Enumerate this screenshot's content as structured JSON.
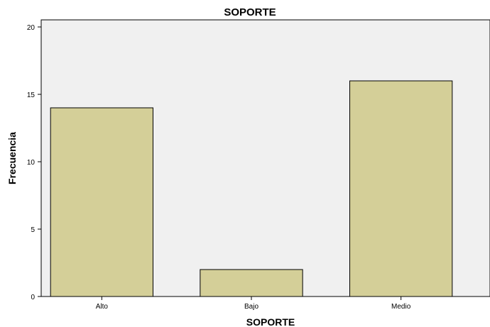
{
  "chart_data": {
    "type": "bar",
    "title": "SOPORTE",
    "xlabel": "SOPORTE",
    "ylabel": "Frecuencia",
    "categories": [
      "Alto",
      "Bajo",
      "Medio"
    ],
    "values": [
      14,
      2,
      16
    ],
    "ylim": [
      0,
      20
    ],
    "yticks": [
      "0",
      "5",
      "10",
      "15",
      "20"
    ],
    "grid": false,
    "legend": "none",
    "colors": {
      "bar_fill": "#d4cf98",
      "bar_stroke": "#000000",
      "plot_bg": "#f0f0f0",
      "axis": "#000000"
    }
  }
}
